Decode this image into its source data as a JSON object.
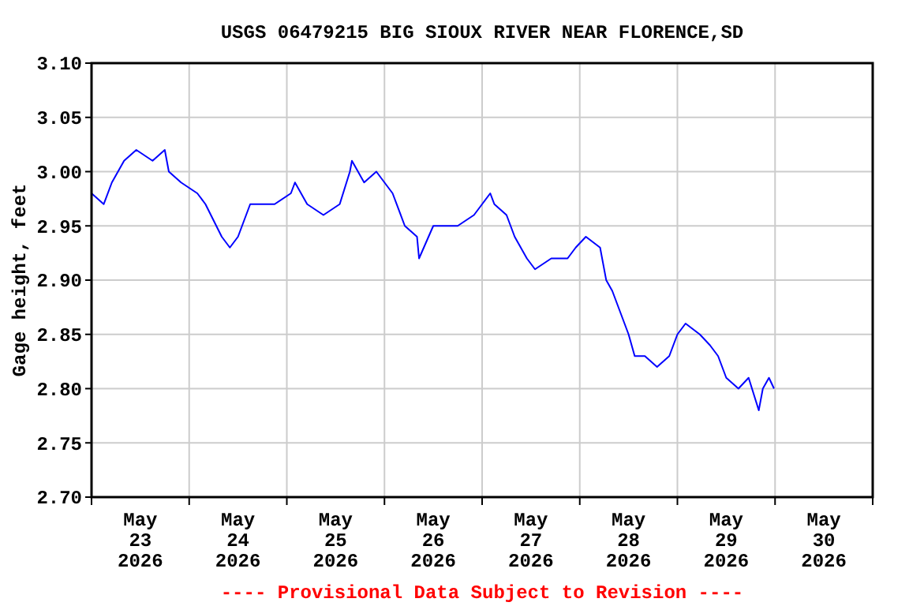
{
  "chart_data": {
    "type": "line",
    "title": "USGS 06479215 BIG SIOUX RIVER NEAR FLORENCE,SD",
    "ylabel": "Gage height, feet",
    "annotations": [
      "---- Provisional Data Subject to Revision ----"
    ],
    "grid": true,
    "line_style": "solid",
    "xlim": [
      "2026-05-23T00:00",
      "2026-05-31T00:00"
    ],
    "xticks": [
      {
        "value": "2026-05-23T00:00",
        "label": null
      },
      {
        "value": "2026-05-23T12:00",
        "label": "May\n23\n2026"
      },
      {
        "value": "2026-05-24T00:00",
        "label": null
      },
      {
        "value": "2026-05-24T12:00",
        "label": "May\n24\n2026"
      },
      {
        "value": "2026-05-25T00:00",
        "label": null
      },
      {
        "value": "2026-05-25T12:00",
        "label": "May\n25\n2026"
      },
      {
        "value": "2026-05-26T00:00",
        "label": null
      },
      {
        "value": "2026-05-26T12:00",
        "label": "May\n26\n2026"
      },
      {
        "value": "2026-05-27T00:00",
        "label": null
      },
      {
        "value": "2026-05-27T12:00",
        "label": "May\n27\n2026"
      },
      {
        "value": "2026-05-28T00:00",
        "label": null
      },
      {
        "value": "2026-05-28T12:00",
        "label": "May\n28\n2026"
      },
      {
        "value": "2026-05-29T00:00",
        "label": null
      },
      {
        "value": "2026-05-29T12:00",
        "label": "May\n29\n2026"
      },
      {
        "value": "2026-05-30T00:00",
        "label": null
      },
      {
        "value": "2026-05-30T12:00",
        "label": "May\n30\n2026"
      },
      {
        "value": "2026-05-31T00:00",
        "label": null
      }
    ],
    "ylim": [
      2.7,
      3.1
    ],
    "yticks": [
      {
        "value": 2.7,
        "label": "2.70"
      },
      {
        "value": 2.75,
        "label": "2.75"
      },
      {
        "value": 2.8,
        "label": "2.80"
      },
      {
        "value": 2.85,
        "label": "2.85"
      },
      {
        "value": 2.9,
        "label": "2.90"
      },
      {
        "value": 2.95,
        "label": "2.95"
      },
      {
        "value": 3.0,
        "label": "3.00"
      },
      {
        "value": 3.05,
        "label": "3.05"
      },
      {
        "value": 3.1,
        "label": "3.10"
      }
    ],
    "x": [
      "2026-05-23T00:00",
      "2026-05-23T03:00",
      "2026-05-23T05:00",
      "2026-05-23T08:00",
      "2026-05-23T11:00",
      "2026-05-23T15:00",
      "2026-05-23T18:00",
      "2026-05-23T19:00",
      "2026-05-23T22:00",
      "2026-05-24T02:00",
      "2026-05-24T04:00",
      "2026-05-24T08:00",
      "2026-05-24T10:00",
      "2026-05-24T12:00",
      "2026-05-24T15:00",
      "2026-05-24T21:00",
      "2026-05-25T01:00",
      "2026-05-25T02:00",
      "2026-05-25T05:00",
      "2026-05-25T09:00",
      "2026-05-25T13:00",
      "2026-05-25T15:30",
      "2026-05-25T16:00",
      "2026-05-25T19:00",
      "2026-05-25T22:00",
      "2026-05-26T02:00",
      "2026-05-26T05:00",
      "2026-05-26T08:00",
      "2026-05-26T08:30",
      "2026-05-26T12:00",
      "2026-05-26T18:00",
      "2026-05-26T22:00",
      "2026-05-27T00:00",
      "2026-05-27T02:00",
      "2026-05-27T03:00",
      "2026-05-27T06:00",
      "2026-05-27T08:00",
      "2026-05-27T11:00",
      "2026-05-27T13:00",
      "2026-05-27T17:00",
      "2026-05-27T21:00",
      "2026-05-27T23:00",
      "2026-05-28T01:30",
      "2026-05-28T05:00",
      "2026-05-28T06:30",
      "2026-05-28T08:00",
      "2026-05-28T10:00",
      "2026-05-28T12:00",
      "2026-05-28T13:30",
      "2026-05-28T16:00",
      "2026-05-28T19:00",
      "2026-05-28T22:00",
      "2026-05-29T00:00",
      "2026-05-29T02:00",
      "2026-05-29T05:30",
      "2026-05-29T08:00",
      "2026-05-29T10:00",
      "2026-05-29T12:00",
      "2026-05-29T15:00",
      "2026-05-29T17:30",
      "2026-05-29T20:00",
      "2026-05-29T21:00",
      "2026-05-29T22:30",
      "2026-05-29T23:45"
    ],
    "series": [
      {
        "color": "#0000ff",
        "values": [
          2.98,
          2.97,
          2.99,
          3.01,
          3.02,
          3.01,
          3.02,
          3.0,
          2.99,
          2.98,
          2.97,
          2.94,
          2.93,
          2.94,
          2.97,
          2.97,
          2.98,
          2.99,
          2.97,
          2.96,
          2.97,
          3.0,
          3.01,
          2.99,
          3.0,
          2.98,
          2.95,
          2.94,
          2.92,
          2.95,
          2.95,
          2.96,
          2.97,
          2.98,
          2.97,
          2.96,
          2.94,
          2.92,
          2.91,
          2.92,
          2.92,
          2.93,
          2.94,
          2.93,
          2.9,
          2.89,
          2.87,
          2.85,
          2.83,
          2.83,
          2.82,
          2.83,
          2.85,
          2.86,
          2.85,
          2.84,
          2.83,
          2.81,
          2.8,
          2.81,
          2.78,
          2.8,
          2.81,
          2.8
        ]
      }
    ]
  }
}
